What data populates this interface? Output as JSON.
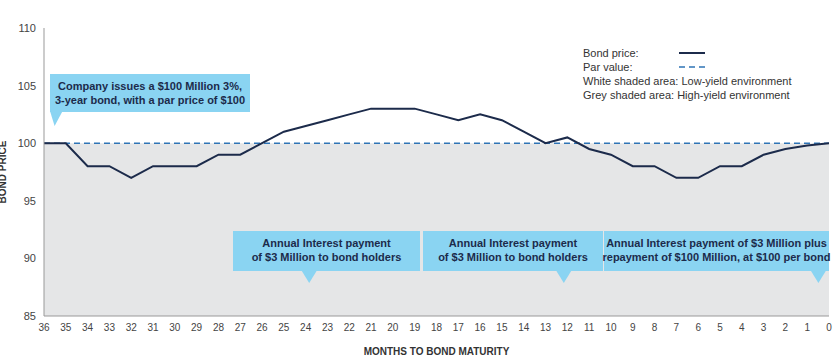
{
  "chart_data": {
    "type": "line",
    "x_label": "MONTHS TO BOND MATURITY",
    "y_label": "BOND PRICE",
    "categories": [
      "36",
      "35",
      "34",
      "33",
      "32",
      "31",
      "30",
      "29",
      "28",
      "27",
      "26",
      "25",
      "24",
      "23",
      "22",
      "21",
      "20",
      "19",
      "18",
      "17",
      "16",
      "15",
      "14",
      "13",
      "12",
      "11",
      "10",
      "9",
      "8",
      "7",
      "6",
      "5",
      "4",
      "3",
      "2",
      "1",
      "0"
    ],
    "series": [
      {
        "name": "Bond price:",
        "color": "#1c2b4b",
        "line_style": "solid",
        "values": [
          100,
          100,
          98,
          98,
          97,
          98,
          98,
          98,
          99,
          99,
          100,
          101,
          101.5,
          102,
          102.5,
          103,
          103,
          103,
          102.5,
          102,
          102.5,
          102,
          101,
          100,
          100.5,
          99.5,
          99,
          98,
          98,
          97,
          97,
          98,
          98,
          99,
          99.5,
          99.8,
          100
        ]
      }
    ],
    "reference_lines": [
      {
        "name": "Par value:",
        "value": 100,
        "color": "#2f74b5",
        "line_style": "dashed"
      }
    ],
    "bands": [
      {
        "label": "White shaded area: Low-yield environment",
        "color": "#ffffff",
        "from": 100,
        "to": 110
      },
      {
        "label": "Grey shaded area: High-yield environment",
        "color": "#e5e6e7",
        "from": 85,
        "to": 100
      }
    ],
    "annotations": [
      {
        "x": "36",
        "lines": [
          "Company issues a $100 Million 3%,",
          "3-year bond, with a par price of $100"
        ]
      },
      {
        "x": "24",
        "lines": [
          "Annual Interest payment",
          "of $3 Million to bond holders"
        ]
      },
      {
        "x": "12",
        "lines": [
          "Annual Interest payment",
          "of $3 Million to bond holders"
        ]
      },
      {
        "x": "0",
        "lines": [
          "Annual Interest payment of $3 Million plus",
          "repayment of $100 Million, at $100 per bond"
        ]
      }
    ],
    "ylim": [
      85,
      110
    ],
    "yticks": [
      85,
      90,
      95,
      100,
      105,
      110
    ],
    "grid": false,
    "legend": "top-right"
  }
}
